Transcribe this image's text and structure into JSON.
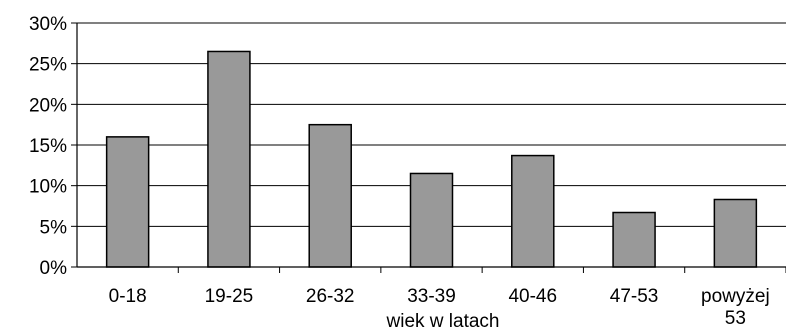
{
  "chart_data": {
    "type": "bar",
    "title": "",
    "xlabel": "wiek w latach",
    "ylabel": "",
    "categories": [
      "0-18",
      "19-25",
      "26-32",
      "33-39",
      "40-46",
      "47-53",
      "powyżej 53"
    ],
    "category_lines": [
      [
        "0-18"
      ],
      [
        "19-25"
      ],
      [
        "26-32"
      ],
      [
        "33-39"
      ],
      [
        "40-46"
      ],
      [
        "47-53"
      ],
      [
        "powyżej",
        "53"
      ]
    ],
    "values": [
      16,
      26.5,
      17.5,
      11.5,
      13.7,
      6.7,
      8.3
    ],
    "ylim": [
      0,
      30
    ],
    "yticks": [
      0,
      5,
      10,
      15,
      20,
      25,
      30
    ],
    "ytick_labels": [
      "0%",
      "5%",
      "10%",
      "15%",
      "20%",
      "25%",
      "30%"
    ],
    "grid": true,
    "legend": "none",
    "colors": {
      "bar_fill": "#999999",
      "bar_stroke": "#000000",
      "grid": "#000000",
      "axis": "#000000"
    }
  }
}
